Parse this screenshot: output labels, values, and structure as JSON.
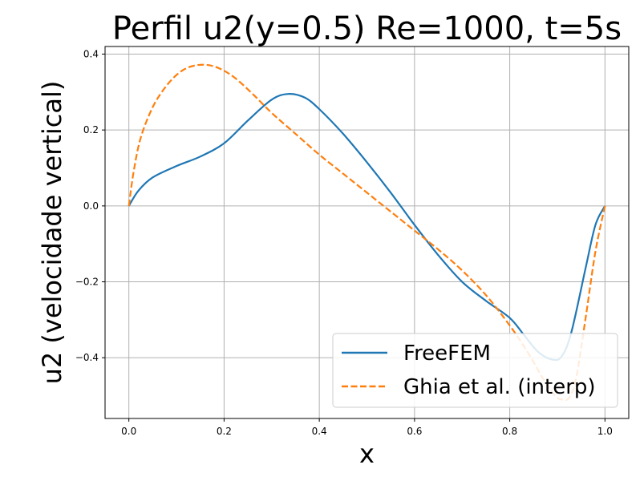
{
  "chart_data": {
    "type": "line",
    "title": "Perfil u2(y=0.5) Re=1000, t=5s",
    "xlabel": "x",
    "ylabel": "u2 (velocidade vertical)",
    "xlim": [
      -0.05,
      1.05
    ],
    "ylim": [
      -0.56,
      0.42
    ],
    "xticks": [
      0.0,
      0.2,
      0.4,
      0.6,
      0.8,
      1.0
    ],
    "xtick_labels": [
      "0.0",
      "0.2",
      "0.4",
      "0.6",
      "0.8",
      "1.0"
    ],
    "yticks": [
      -0.4,
      -0.2,
      0.0,
      0.2,
      0.4
    ],
    "ytick_labels": [
      "−0.4",
      "−0.2",
      "0.0",
      "0.2",
      "0.4"
    ],
    "grid": true,
    "legend_position": "bottom-right",
    "series": [
      {
        "name": "FreeFEM",
        "color": "#1f77b4",
        "style": "solid",
        "x": [
          0.0,
          0.02,
          0.05,
          0.1,
          0.15,
          0.2,
          0.25,
          0.3,
          0.335,
          0.37,
          0.4,
          0.45,
          0.5,
          0.55,
          0.6,
          0.65,
          0.7,
          0.75,
          0.8,
          0.83,
          0.86,
          0.89,
          0.91,
          0.93,
          0.96,
          0.98,
          1.0
        ],
        "y": [
          0.0,
          0.04,
          0.075,
          0.105,
          0.13,
          0.165,
          0.225,
          0.28,
          0.295,
          0.285,
          0.255,
          0.19,
          0.115,
          0.035,
          -0.05,
          -0.13,
          -0.2,
          -0.25,
          -0.295,
          -0.34,
          -0.385,
          -0.405,
          -0.395,
          -0.33,
          -0.16,
          -0.05,
          0.0
        ]
      },
      {
        "name": "Ghia et al. (interp)",
        "color": "#ff7f0e",
        "style": "dashed",
        "x": [
          0.0,
          0.01,
          0.025,
          0.05,
          0.075,
          0.1,
          0.125,
          0.155,
          0.185,
          0.22,
          0.26,
          0.3,
          0.35,
          0.4,
          0.45,
          0.5,
          0.55,
          0.6,
          0.65,
          0.7,
          0.75,
          0.8,
          0.84,
          0.87,
          0.895,
          0.91,
          0.925,
          0.94,
          0.96,
          0.98,
          1.0
        ],
        "y": [
          0.0,
          0.09,
          0.18,
          0.26,
          0.31,
          0.345,
          0.365,
          0.372,
          0.365,
          0.34,
          0.295,
          0.245,
          0.19,
          0.135,
          0.085,
          0.035,
          -0.015,
          -0.065,
          -0.115,
          -0.17,
          -0.235,
          -0.315,
          -0.39,
          -0.455,
          -0.5,
          -0.51,
          -0.505,
          -0.45,
          -0.29,
          -0.12,
          0.0
        ]
      }
    ]
  }
}
